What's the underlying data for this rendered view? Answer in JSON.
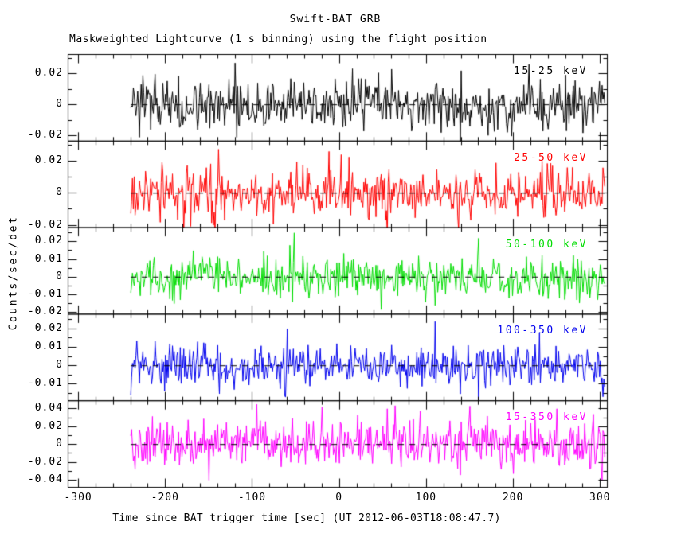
{
  "chart_data": {
    "type": "line",
    "title": "Swift-BAT GRB",
    "subtitle": "Maskweighted Lightcurve (1 s binning) using the flight position",
    "xlabel": "Time since BAT trigger time [sec] (UT 2012-06-03T18:08:47.7)",
    "ylabel": "Counts/sec/det",
    "grid": false,
    "legend_position": "in-panel top-right",
    "background_color": "#ffffff",
    "frame_color": "#000000",
    "zero_line_style": "dashed",
    "x_range": [
      -312,
      308
    ],
    "x_major_ticks": [
      -300,
      -200,
      -100,
      0,
      100,
      200,
      300
    ],
    "x_major_step": 100,
    "x_minor_step": 20,
    "bin_seconds": 1,
    "data_t_start": -240,
    "data_t_end": 305,
    "content_summary": "Five stacked energy-band panels of zero-mean mask-weighted noise around the dashed zero line; no strong burst peak visible.",
    "panels": [
      {
        "label": "15-25 keV",
        "color": "#000000",
        "ylim": [
          -0.0235,
          0.0325
        ],
        "yticks": [
          -0.02,
          0,
          0.02
        ],
        "y_minor_step": 0.01,
        "noise_sigma": 0.0075,
        "seed": 3,
        "spikes": [
          [
            -120,
            0.027
          ],
          [
            -118,
            -0.021
          ],
          [
            140,
            0.022
          ],
          [
            -230,
            -0.021
          ],
          [
            60,
            0.023
          ]
        ]
      },
      {
        "label": "25-50 keV",
        "color": "#ff0000",
        "ylim": [
          -0.0215,
          0.0325
        ],
        "yticks": [
          -0.02,
          0,
          0.02
        ],
        "y_minor_step": 0.01,
        "noise_sigma": 0.0075,
        "seed": 8,
        "spikes": [
          [
            -12,
            0.026
          ],
          [
            2,
            0.024
          ],
          [
            55,
            -0.026
          ],
          [
            233,
            0.02
          ],
          [
            -145,
            -0.02
          ]
        ]
      },
      {
        "label": "50-100 keV",
        "color": "#00dd00",
        "ylim": [
          -0.021,
          0.028
        ],
        "yticks": [
          -0.02,
          -0.01,
          0,
          0.01,
          0.02
        ],
        "y_minor_step": 0.005,
        "noise_sigma": 0.0055,
        "seed": 5,
        "spikes": [
          [
            -52,
            0.025
          ],
          [
            -57,
            0.018
          ],
          [
            160,
            0.022
          ],
          [
            110,
            -0.016
          ],
          [
            -190,
            -0.015
          ]
        ]
      },
      {
        "label": "100-350 keV",
        "color": "#0000ee",
        "ylim": [
          -0.019,
          0.028
        ],
        "yticks": [
          -0.01,
          0,
          0.01,
          0.02
        ],
        "y_minor_step": 0.005,
        "noise_sigma": 0.0055,
        "seed": 11,
        "spikes": [
          [
            110,
            0.024
          ],
          [
            -60,
            0.02
          ],
          [
            -62,
            -0.017
          ],
          [
            230,
            0.018
          ],
          [
            -240,
            -0.016
          ]
        ]
      },
      {
        "label": "15-350 keV",
        "color": "#ff00ff",
        "ylim": [
          -0.048,
          0.049
        ],
        "yticks": [
          -0.04,
          -0.02,
          0,
          0.02,
          0.04
        ],
        "y_minor_step": 0.01,
        "noise_sigma": 0.0135,
        "seed": 14,
        "spikes": [
          [
            -95,
            0.045
          ],
          [
            -20,
            0.042
          ],
          [
            55,
            0.04
          ],
          [
            150,
            0.043
          ],
          [
            -150,
            -0.04
          ],
          [
            250,
            0.04
          ]
        ]
      }
    ]
  }
}
